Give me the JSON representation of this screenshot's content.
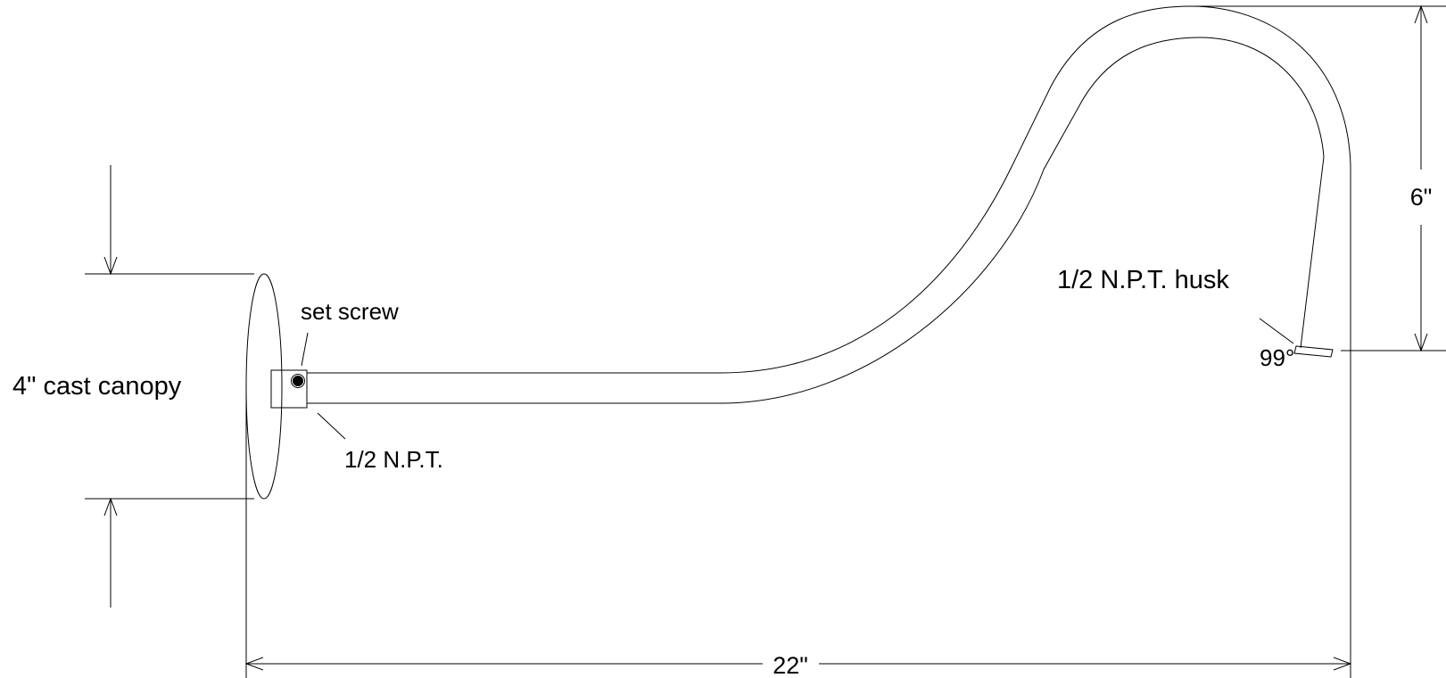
{
  "labels": {
    "canopy": "4\" cast canopy",
    "set_screw": "set screw",
    "npt": "1/2 N.P.T.",
    "husk": "1/2 N.P.T. husk",
    "angle": "99°"
  },
  "dimensions": {
    "width": "22\"",
    "height": "6\""
  },
  "colors": {
    "line": "#000000",
    "background": "#ffffff"
  }
}
